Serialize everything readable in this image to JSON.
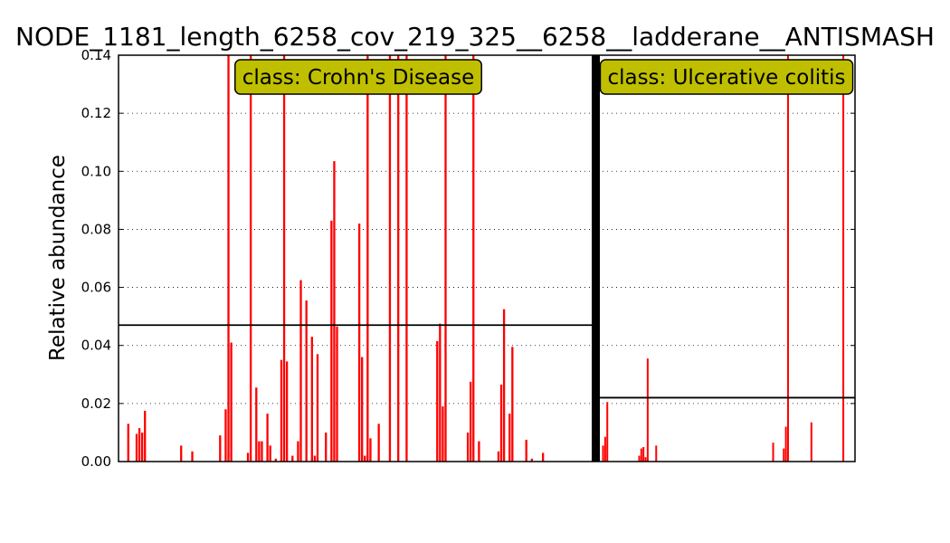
{
  "chart_data": {
    "type": "bar",
    "title": "NODE_1181_length_6258_cov_219_325__6258__ladderane__ANTISMASH",
    "ylabel": "Relative abundance",
    "xlabel": "",
    "ylim": [
      0,
      0.14
    ],
    "yticks": [
      "0.00",
      "0.02",
      "0.04",
      "0.06",
      "0.08",
      "0.10",
      "0.12",
      "0.14"
    ],
    "grid": "y-dotted",
    "bar_color": "#ff0000",
    "panels": [
      {
        "name": "class: Crohn's Disease",
        "label_bg": "#bfbf00",
        "mean": 0.047,
        "values": [
          0,
          0,
          0,
          0.013,
          0,
          0,
          0.0095,
          0.0115,
          0.01,
          0.0175,
          0,
          0,
          0,
          0,
          0,
          0,
          0,
          0,
          0,
          0,
          0,
          0,
          0.0055,
          0,
          0,
          0,
          0.0035,
          0,
          0,
          0,
          0,
          0,
          0,
          0,
          0,
          0,
          0.009,
          0,
          0.018,
          0.14,
          0.041,
          0,
          0,
          0,
          0,
          0,
          0.003,
          0.14,
          0,
          0.0255,
          0.007,
          0.007,
          0,
          0.0165,
          0.0055,
          0,
          0.001,
          0,
          0.035,
          0.14,
          0.0345,
          0,
          0.002,
          0,
          0.007,
          0.0625,
          0,
          0.0555,
          0,
          0.043,
          0.002,
          0.037,
          0,
          0,
          0.01,
          0,
          0.083,
          0.1035,
          0.0465,
          0,
          0,
          0,
          0,
          0,
          0,
          0,
          0.082,
          0.036,
          0.002,
          0.14,
          0.008,
          0,
          0,
          0.013,
          0,
          0,
          0,
          0.14,
          0,
          0,
          0.14,
          0,
          0,
          0.14,
          0,
          0,
          0,
          0,
          0,
          0,
          0,
          0,
          0,
          0,
          0.0415,
          0.0475,
          0.019,
          0.14,
          0,
          0,
          0,
          0,
          0,
          0,
          0,
          0.01,
          0.0275,
          0.14,
          0,
          0.007,
          0,
          0,
          0,
          0,
          0,
          0,
          0.0035,
          0.0265,
          0.0525,
          0,
          0.0165,
          0.0395,
          0,
          0,
          0,
          0,
          0.0075,
          0,
          0.001,
          0,
          0,
          0,
          0.003,
          0,
          0,
          0,
          0,
          0,
          0,
          0,
          0,
          0,
          0,
          0,
          0,
          0,
          0,
          0,
          0,
          0
        ]
      },
      {
        "name": "class: Ulcerative colitis",
        "label_bg": "#bfbf00",
        "mean": 0.022,
        "values": [
          0,
          0.0055,
          0.0085,
          0.0205,
          0,
          0,
          0,
          0,
          0,
          0,
          0,
          0,
          0,
          0,
          0,
          0,
          0,
          0,
          0.002,
          0.0045,
          0.005,
          0.0015,
          0.0355,
          0,
          0,
          0,
          0.0055,
          0,
          0,
          0,
          0,
          0,
          0,
          0,
          0,
          0,
          0,
          0,
          0,
          0,
          0,
          0,
          0,
          0,
          0,
          0,
          0,
          0,
          0,
          0,
          0,
          0,
          0,
          0,
          0,
          0,
          0,
          0,
          0,
          0,
          0,
          0,
          0,
          0,
          0,
          0,
          0,
          0,
          0,
          0,
          0,
          0,
          0,
          0,
          0,
          0,
          0,
          0,
          0,
          0,
          0,
          0.0065,
          0,
          0,
          0,
          0,
          0.0045,
          0.012,
          0.14,
          0,
          0,
          0,
          0,
          0,
          0,
          0,
          0,
          0,
          0,
          0.0135,
          0,
          0,
          0,
          0,
          0,
          0,
          0,
          0,
          0,
          0,
          0,
          0,
          0,
          0,
          0.14,
          0,
          0,
          0,
          0,
          0
        ]
      }
    ]
  }
}
